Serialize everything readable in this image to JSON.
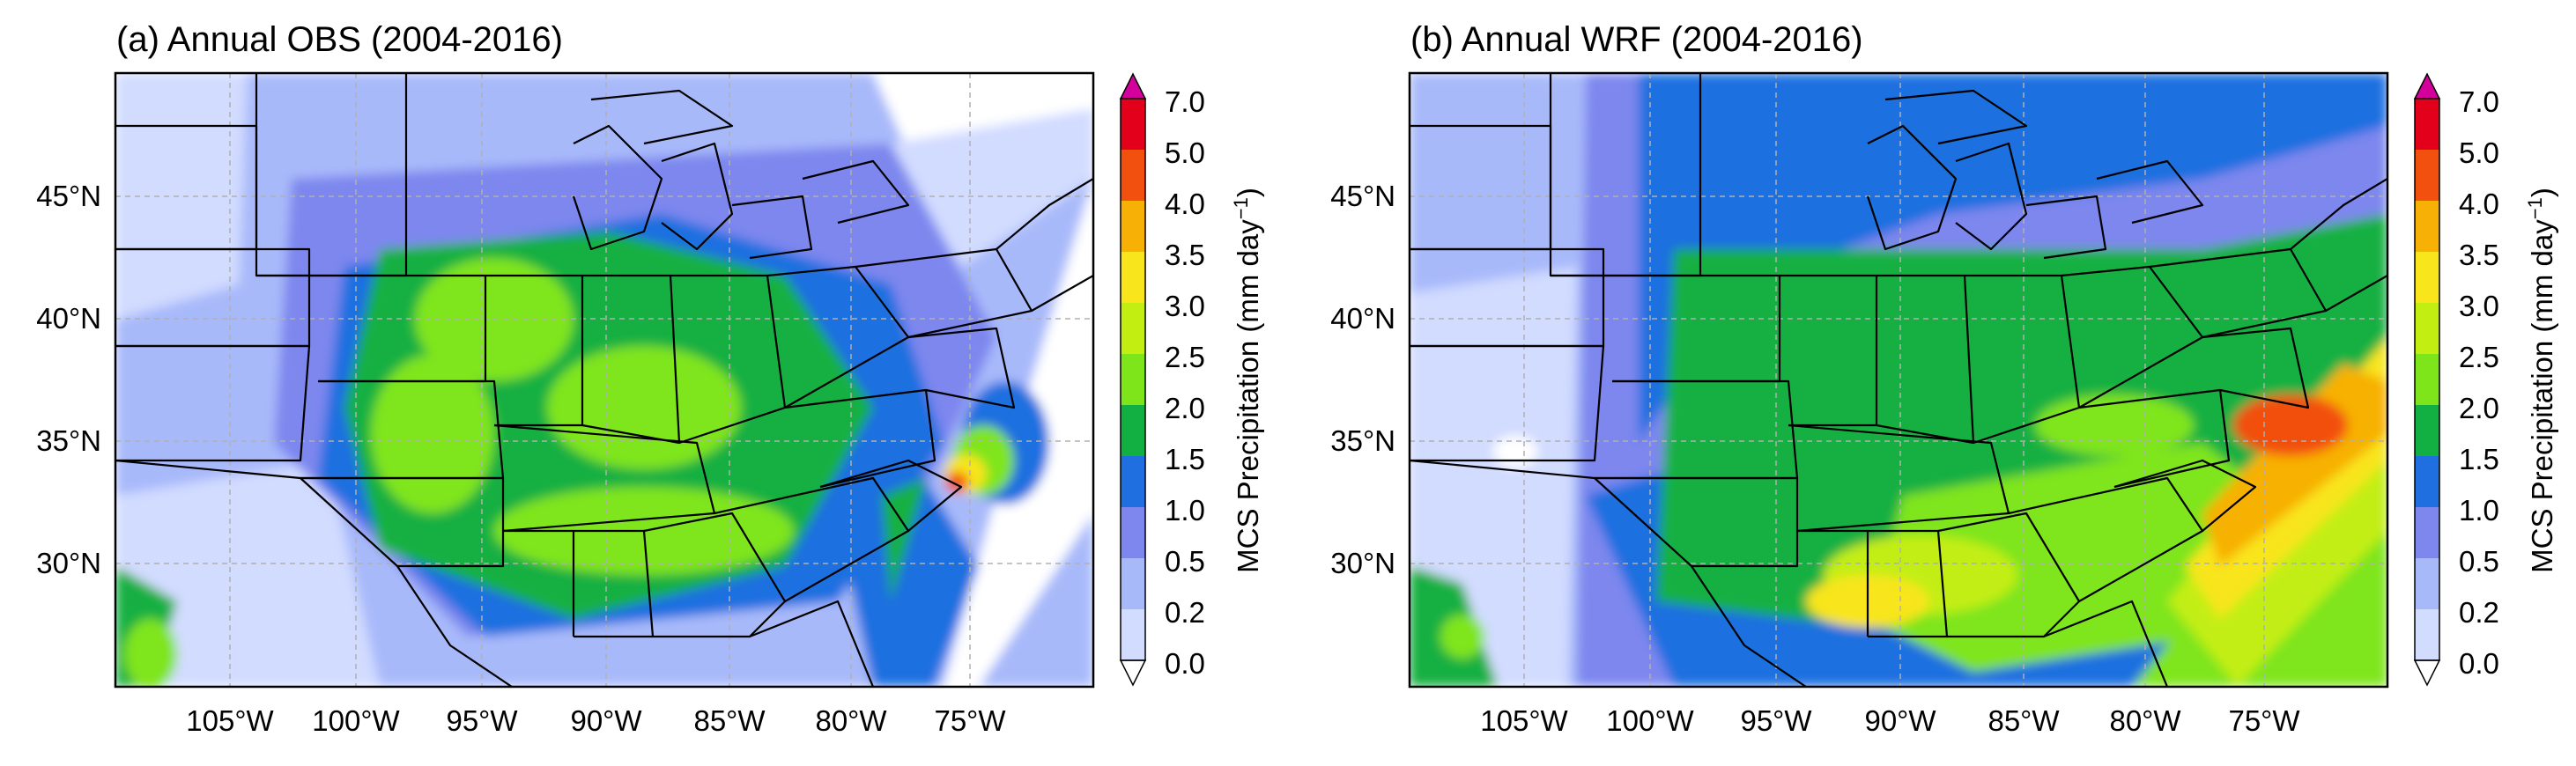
{
  "panels": [
    {
      "title": "(a) Annual OBS (2004-2016)",
      "lat_labels": [
        "45°N",
        "40°N",
        "35°N",
        "30°N"
      ],
      "lon_labels": [
        "105°W",
        "100°W",
        "95°W",
        "90°W",
        "85°W",
        "80°W",
        "75°W"
      ],
      "colorbar": {
        "label": "MCS Precipitation (mm day",
        "label_sup": "−1",
        "label_close": ")",
        "ticks": [
          "0.0",
          "0.2",
          "0.5",
          "1.0",
          "1.5",
          "2.0",
          "2.5",
          "3.0",
          "3.5",
          "4.0",
          "5.0",
          "7.0"
        ]
      }
    },
    {
      "title": "(b) Annual WRF (2004-2016)",
      "lat_labels": [
        "45°N",
        "40°N",
        "35°N",
        "30°N"
      ],
      "lon_labels": [
        "105°W",
        "100°W",
        "95°W",
        "90°W",
        "85°W",
        "80°W",
        "75°W"
      ],
      "colorbar": {
        "label": "MCS Precipitation (mm day",
        "label_sup": "−1",
        "label_close": ")",
        "ticks": [
          "0.0",
          "0.2",
          "0.5",
          "1.0",
          "1.5",
          "2.0",
          "2.5",
          "3.0",
          "3.5",
          "4.0",
          "5.0",
          "7.0"
        ]
      }
    }
  ],
  "colors": {
    "levels": [
      "#ffffff",
      "#d2dcff",
      "#a8b9fa",
      "#7d87ee",
      "#1f6fe0",
      "#12b043",
      "#7fe51b",
      "#c2ee12",
      "#f8e51c",
      "#f7b106",
      "#f2500f",
      "#e3001b"
    ],
    "extend_max": "#d4009c",
    "grid": "#b0b0b0",
    "border": "#000000"
  }
}
